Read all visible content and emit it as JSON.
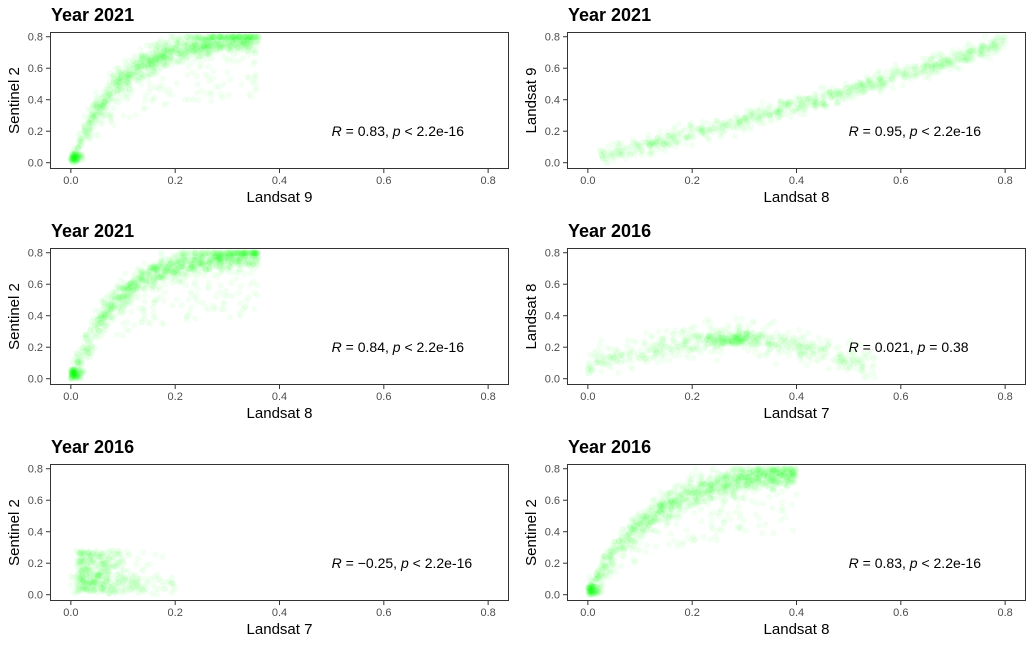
{
  "chart_data": [
    {
      "type": "scatter",
      "title": "Year 2021",
      "xlabel": "Landsat 9",
      "ylabel": "Sentinel 2",
      "xlim": [
        -0.04,
        0.84
      ],
      "ylim": [
        -0.04,
        0.83
      ],
      "xticks": [
        "0.0",
        "0.2",
        "0.4",
        "0.6",
        "0.8"
      ],
      "yticks": [
        "0.0",
        "0.2",
        "0.4",
        "0.6",
        "0.8"
      ],
      "annotation": {
        "r_sym": "R",
        "r_text": " = 0.83, ",
        "p_sym": "p",
        "p_text": " < 2.2e-16",
        "x": 0.5,
        "y": 0.2
      },
      "color": "#00ff00",
      "pattern": "saturating",
      "point_count": 1300
    },
    {
      "type": "scatter",
      "title": "Year 2021",
      "xlabel": "Landsat 8",
      "ylabel": "Landsat 9",
      "xlim": [
        -0.04,
        0.84
      ],
      "ylim": [
        -0.04,
        0.83
      ],
      "xticks": [
        "0.0",
        "0.2",
        "0.4",
        "0.6",
        "0.8"
      ],
      "yticks": [
        "0.0",
        "0.2",
        "0.4",
        "0.6",
        "0.8"
      ],
      "annotation": {
        "r_sym": "R",
        "r_text": " = 0.95, ",
        "p_sym": "p",
        "p_text": " < 2.2e-16",
        "x": 0.5,
        "y": 0.2
      },
      "color": "#00ff00",
      "pattern": "near-linear",
      "point_count": 900
    },
    {
      "type": "scatter",
      "title": "Year 2021",
      "xlabel": "Landsat 8",
      "ylabel": "Sentinel 2",
      "xlim": [
        -0.04,
        0.84
      ],
      "ylim": [
        -0.04,
        0.83
      ],
      "xticks": [
        "0.0",
        "0.2",
        "0.4",
        "0.6",
        "0.8"
      ],
      "yticks": [
        "0.0",
        "0.2",
        "0.4",
        "0.6",
        "0.8"
      ],
      "annotation": {
        "r_sym": "R",
        "r_text": " = 0.84, ",
        "p_sym": "p",
        "p_text": " < 2.2e-16",
        "x": 0.5,
        "y": 0.2
      },
      "color": "#00ff00",
      "pattern": "saturating",
      "point_count": 1300
    },
    {
      "type": "scatter",
      "title": "Year 2016",
      "xlabel": "Landsat 7",
      "ylabel": "Landsat 8",
      "xlim": [
        -0.04,
        0.84
      ],
      "ylim": [
        -0.04,
        0.83
      ],
      "xticks": [
        "0.0",
        "0.2",
        "0.4",
        "0.6",
        "0.8"
      ],
      "yticks": [
        "0.0",
        "0.2",
        "0.4",
        "0.6",
        "0.8"
      ],
      "annotation": {
        "r_sym": "R",
        "r_text": " = 0.021, ",
        "p_sym": "p",
        "p_text": " = 0.38",
        "x": 0.5,
        "y": 0.2
      },
      "color": "#00ff00",
      "pattern": "flat-arc",
      "point_count": 700
    },
    {
      "type": "scatter",
      "title": "Year 2016",
      "xlabel": "Landsat 7",
      "ylabel": "Sentinel 2",
      "xlim": [
        -0.04,
        0.84
      ],
      "ylim": [
        -0.04,
        0.83
      ],
      "xticks": [
        "0.0",
        "0.2",
        "0.4",
        "0.6",
        "0.8"
      ],
      "yticks": [
        "0.0",
        "0.2",
        "0.4",
        "0.6",
        "0.8"
      ],
      "annotation": {
        "r_sym": "R",
        "r_text": " = −0.25, ",
        "p_sym": "p",
        "p_text": " < 2.2e-16",
        "x": 0.5,
        "y": 0.2
      },
      "color": "#00ff00",
      "pattern": "clustered-left",
      "point_count": 500
    },
    {
      "type": "scatter",
      "title": "Year 2016",
      "xlabel": "Landsat 8",
      "ylabel": "Sentinel 2",
      "xlim": [
        -0.04,
        0.84
      ],
      "ylim": [
        -0.04,
        0.83
      ],
      "xticks": [
        "0.0",
        "0.2",
        "0.4",
        "0.6",
        "0.8"
      ],
      "yticks": [
        "0.0",
        "0.2",
        "0.4",
        "0.6",
        "0.8"
      ],
      "annotation": {
        "r_sym": "R",
        "r_text": " = 0.83, ",
        "p_sym": "p",
        "p_text": " < 2.2e-16",
        "x": 0.5,
        "y": 0.2
      },
      "color": "#00ff00",
      "pattern": "saturating-wide",
      "point_count": 1300
    }
  ]
}
